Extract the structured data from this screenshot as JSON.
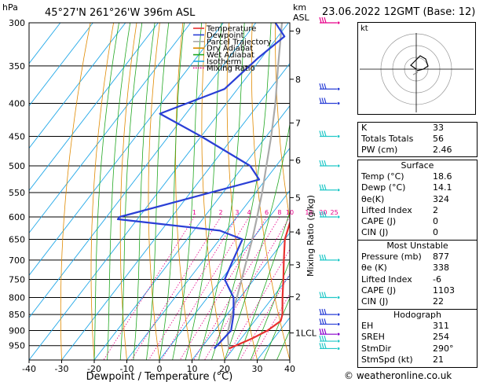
{
  "header": {
    "hpa_label": "hPa",
    "location": "45°27'N  261°26'W  396m  ASL",
    "km_label": "km",
    "asl_label": "ASL",
    "datetime": "23.06.2022  12GMT  (Base: 12)"
  },
  "chart_data": {
    "type": "skew-t log-p",
    "xlabel": "Dewpoint / Temperature (°C)",
    "ylabel_right": "Mixing Ratio (g/kg)",
    "x_ticks": [
      -40,
      -30,
      -20,
      -10,
      0,
      10,
      20,
      30,
      40
    ],
    "pressure_levels": [
      300,
      350,
      400,
      450,
      500,
      550,
      600,
      650,
      700,
      750,
      800,
      850,
      900,
      950
    ],
    "pressure_range": [
      300,
      1000
    ],
    "temperature_range_at_base": [
      -40,
      40
    ],
    "km_ticks": [
      {
        "label": "9",
        "p": 309
      },
      {
        "label": "8",
        "p": 367
      },
      {
        "label": "7",
        "p": 429
      },
      {
        "label": "6",
        "p": 490
      },
      {
        "label": "5",
        "p": 560
      },
      {
        "label": "4",
        "p": 633
      },
      {
        "label": "3",
        "p": 712
      },
      {
        "label": "2",
        "p": 798
      },
      {
        "label": "1LCL",
        "p": 908
      }
    ],
    "mixing_ratio_labels": [
      "1",
      "2",
      "3",
      "4",
      "6",
      "8",
      "10",
      "15",
      "20",
      "25"
    ],
    "mixing_ratio_values": [
      1,
      2,
      3,
      4,
      6,
      8,
      10,
      15,
      20,
      25
    ],
    "legend": [
      {
        "name": "Temperature",
        "color": "#e8312f"
      },
      {
        "name": "Dewpoint",
        "color": "#2a3fd6"
      },
      {
        "name": "Parcel Trajectory",
        "color": "#aaaaaa"
      },
      {
        "name": "Dry Adiabat",
        "color": "#e08a00"
      },
      {
        "name": "Wet Adiabat",
        "color": "#22a822"
      },
      {
        "name": "Isotherm",
        "color": "#22a8e8"
      },
      {
        "name": "Mixing Ratio",
        "color": "#e8008a"
      }
    ],
    "temperature_profile": [
      {
        "p": 960,
        "t": 18.6
      },
      {
        "p": 925,
        "t": 23.5
      },
      {
        "p": 900,
        "t": 26.2
      },
      {
        "p": 870,
        "t": 28.0
      },
      {
        "p": 850,
        "t": 27.0
      },
      {
        "p": 800,
        "t": 23.0
      },
      {
        "p": 750,
        "t": 19.0
      },
      {
        "p": 700,
        "t": 14.6
      },
      {
        "p": 650,
        "t": 10.0
      },
      {
        "p": 600,
        "t": 6.8
      },
      {
        "p": 550,
        "t": 1.5
      },
      {
        "p": 500,
        "t": -4.0
      },
      {
        "p": 450,
        "t": -10.0
      },
      {
        "p": 400,
        "t": -17.0
      },
      {
        "p": 350,
        "t": -25.0
      },
      {
        "p": 300,
        "t": -34.0
      }
    ],
    "dewpoint_profile": [
      {
        "p": 960,
        "t": 14.1
      },
      {
        "p": 900,
        "t": 15.0
      },
      {
        "p": 850,
        "t": 12.0
      },
      {
        "p": 800,
        "t": 8.0
      },
      {
        "p": 750,
        "t": 1.0
      },
      {
        "p": 700,
        "t": -1.0
      },
      {
        "p": 650,
        "t": -3.0
      },
      {
        "p": 630,
        "t": -12.0
      },
      {
        "p": 605,
        "t": -46.0
      },
      {
        "p": 600,
        "t": -46.0
      },
      {
        "p": 525,
        "t": -12.0
      },
      {
        "p": 500,
        "t": -18.0
      },
      {
        "p": 450,
        "t": -40.0
      },
      {
        "p": 415,
        "t": -58.0
      },
      {
        "p": 380,
        "t": -44.0
      },
      {
        "p": 340,
        "t": -41.0
      },
      {
        "p": 315,
        "t": -38.0
      },
      {
        "p": 300,
        "t": -44.0
      }
    ],
    "parcel_profile": [
      {
        "p": 960,
        "t": 18.6
      },
      {
        "p": 908,
        "t": 14.5
      },
      {
        "p": 850,
        "t": 11.5
      },
      {
        "p": 800,
        "t": 9.0
      },
      {
        "p": 750,
        "t": 6.2
      },
      {
        "p": 700,
        "t": 3.2
      },
      {
        "p": 650,
        "t": 0.0
      },
      {
        "p": 600,
        "t": -3.8
      },
      {
        "p": 550,
        "t": -8.0
      },
      {
        "p": 500,
        "t": -13.0
      },
      {
        "p": 450,
        "t": -18.5
      },
      {
        "p": 400,
        "t": -25.0
      },
      {
        "p": 350,
        "t": -33.0
      },
      {
        "p": 300,
        "t": -42.0
      }
    ],
    "wind_barbs": [
      {
        "p": 960,
        "color": "#22c8c8"
      },
      {
        "p": 935,
        "color": "#22c8c8"
      },
      {
        "p": 912,
        "color": "#8800cc"
      },
      {
        "p": 880,
        "color": "#2a3fd6"
      },
      {
        "p": 850,
        "color": "#2a3fd6"
      },
      {
        "p": 800,
        "color": "#22c8c8"
      },
      {
        "p": 700,
        "color": "#22c8c8"
      },
      {
        "p": 600,
        "color": "#22c8c8"
      },
      {
        "p": 545,
        "color": "#22c8c8"
      },
      {
        "p": 500,
        "color": "#22c8c8"
      },
      {
        "p": 450,
        "color": "#22c8c8"
      },
      {
        "p": 400,
        "color": "#2a3fd6"
      },
      {
        "p": 380,
        "color": "#2a3fd6"
      },
      {
        "p": 300,
        "color": "#e8008a"
      }
    ]
  },
  "hodograph": {
    "label": "kt"
  },
  "indices": {
    "top": [
      {
        "label": "K",
        "value": "33"
      },
      {
        "label": "Totals Totals",
        "value": "56"
      },
      {
        "label": "PW (cm)",
        "value": "2.46"
      }
    ],
    "surface": {
      "title": "Surface",
      "rows": [
        {
          "label": "Temp (°C)",
          "value": "18.6"
        },
        {
          "label": "Dewp (°C)",
          "value": "14.1"
        },
        {
          "label": "θe(K)",
          "value": "324"
        },
        {
          "label": "Lifted Index",
          "value": "2"
        },
        {
          "label": "CAPE (J)",
          "value": "0"
        },
        {
          "label": "CIN (J)",
          "value": "0"
        }
      ]
    },
    "most_unstable": {
      "title": "Most Unstable",
      "rows": [
        {
          "label": "Pressure (mb)",
          "value": "877"
        },
        {
          "label": "θe (K)",
          "value": "338"
        },
        {
          "label": "Lifted Index",
          "value": "-6"
        },
        {
          "label": "CAPE (J)",
          "value": "1103"
        },
        {
          "label": "CIN (J)",
          "value": "22"
        }
      ]
    },
    "hodograph_box": {
      "title": "Hodograph",
      "rows": [
        {
          "label": "EH",
          "value": "311"
        },
        {
          "label": "SREH",
          "value": "254"
        },
        {
          "label": "StmDir",
          "value": "290°"
        },
        {
          "label": "StmSpd (kt)",
          "value": "21"
        }
      ]
    }
  },
  "footer": {
    "copyright": "© weatheronline.co.uk"
  }
}
